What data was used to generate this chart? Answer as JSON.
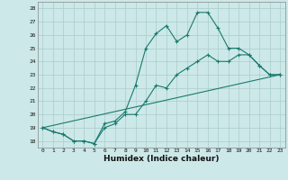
{
  "title": "",
  "xlabel": "Humidex (Indice chaleur)",
  "xlim": [
    -0.5,
    23.5
  ],
  "ylim": [
    17.5,
    28.5
  ],
  "xticks": [
    0,
    1,
    2,
    3,
    4,
    5,
    6,
    7,
    8,
    9,
    10,
    11,
    12,
    13,
    14,
    15,
    16,
    17,
    18,
    19,
    20,
    21,
    22,
    23
  ],
  "yticks": [
    18,
    19,
    20,
    21,
    22,
    23,
    24,
    25,
    26,
    27,
    28
  ],
  "bg_color": "#cce8e8",
  "grid_color": "#aacccc",
  "line_color": "#1a7a6e",
  "line1_x": [
    0,
    1,
    2,
    3,
    4,
    5,
    6,
    7,
    8,
    9,
    10,
    11,
    12,
    13,
    14,
    15,
    16,
    17,
    18,
    19,
    20,
    21,
    22,
    23
  ],
  "line1_y": [
    19.0,
    18.7,
    18.5,
    18.0,
    18.0,
    17.8,
    19.3,
    19.5,
    20.2,
    22.2,
    25.0,
    26.1,
    26.7,
    25.5,
    26.0,
    27.7,
    27.7,
    26.5,
    25.0,
    25.0,
    24.5,
    23.7,
    23.0,
    23.0
  ],
  "line2_x": [
    0,
    1,
    2,
    3,
    4,
    5,
    6,
    7,
    8,
    9,
    10,
    11,
    12,
    13,
    14,
    15,
    16,
    17,
    18,
    19,
    20,
    21,
    22,
    23
  ],
  "line2_y": [
    19.0,
    18.7,
    18.5,
    18.0,
    18.0,
    17.8,
    19.0,
    19.3,
    20.0,
    20.0,
    21.0,
    22.2,
    22.0,
    23.0,
    23.5,
    24.0,
    24.5,
    24.0,
    24.0,
    24.5,
    24.5,
    23.7,
    23.0,
    23.0
  ],
  "line3_x": [
    0,
    23
  ],
  "line3_y": [
    19.0,
    23.0
  ]
}
